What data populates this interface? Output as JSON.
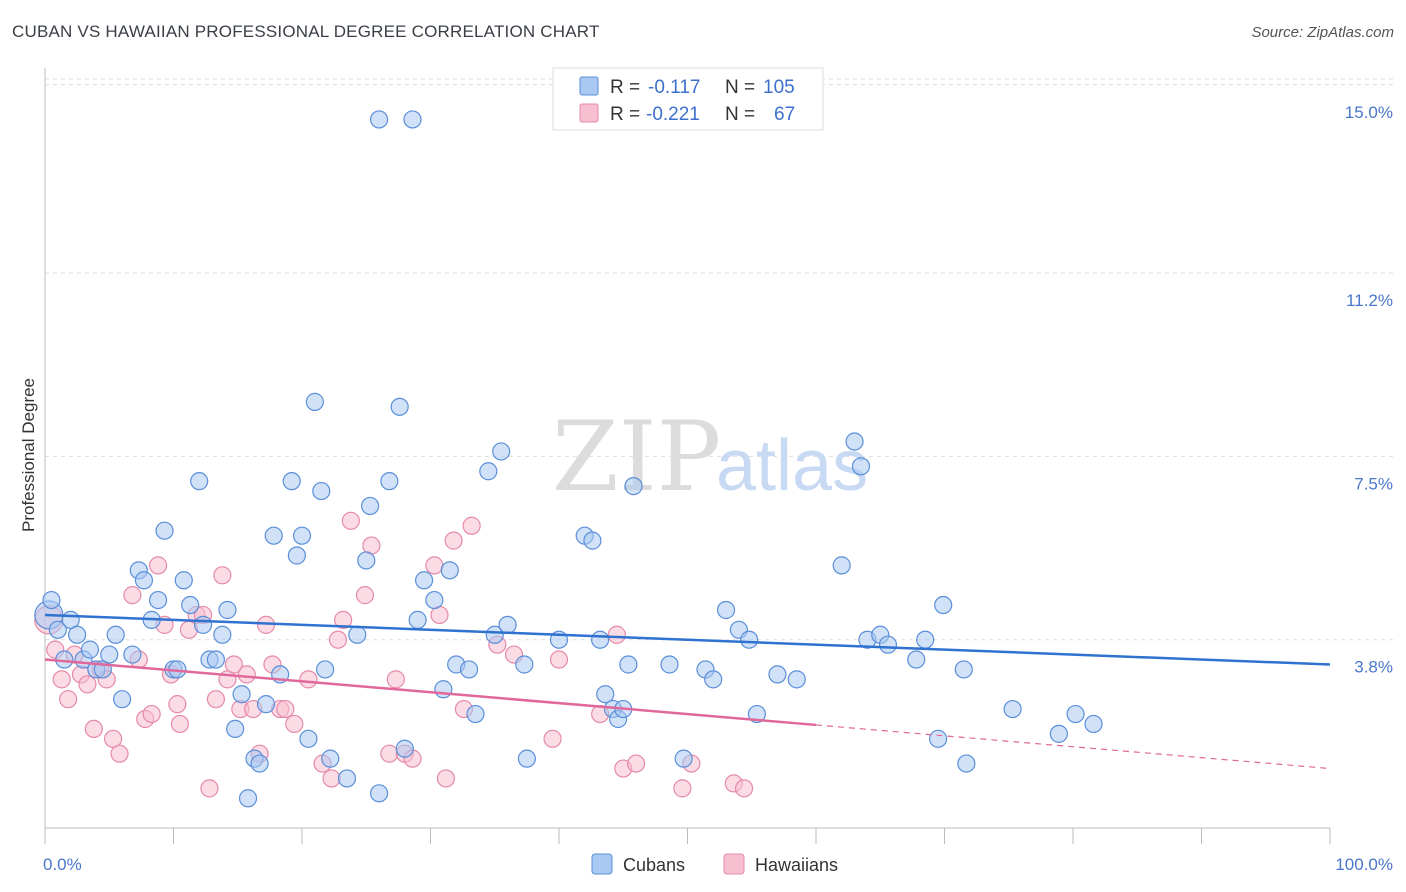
{
  "title": "CUBAN VS HAWAIIAN PROFESSIONAL DEGREE CORRELATION CHART",
  "source": "Source: ZipAtlas.com",
  "watermark": {
    "zip": "ZIP",
    "atlas": "atlas"
  },
  "colors": {
    "cuban_fill": "#a9c9f2",
    "cuban_stroke": "#5b8fd9",
    "cuban_line": "#2f72d0",
    "hawaiian_fill": "#f7bfd0",
    "hawaiian_stroke": "#e58aa9",
    "hawaiian_line": "#e0689a",
    "tick_label": "#4a78c8",
    "grid": "#dddddd"
  },
  "legend": {
    "rows": [
      {
        "r_label": "R =",
        "r_value": "-0.117",
        "n_label": "N =",
        "n_value": "105"
      },
      {
        "r_label": "R =",
        "r_value": "-0.221",
        "n_label": "N =",
        "n_value": "67"
      }
    ]
  },
  "bottom_legend": [
    "Cubans",
    "Hawaiians"
  ],
  "chart_data": {
    "type": "scatter",
    "title": "CUBAN VS HAWAIIAN PROFESSIONAL DEGREE CORRELATION CHART",
    "xlabel": "",
    "ylabel": "Professional Degree",
    "xlim": [
      0,
      100
    ],
    "ylim": [
      0,
      15.5
    ],
    "x_tick_labels": [
      "0.0%",
      "100.0%"
    ],
    "y_ticks": [
      3.8,
      7.5,
      11.2,
      15.0
    ],
    "y_tick_labels": [
      "3.8%",
      "7.5%",
      "11.2%",
      "15.0%"
    ],
    "grid": "horizontal dashed",
    "legend_position": "top-center",
    "series": [
      {
        "name": "Cubans",
        "trend": {
          "x": [
            0,
            100
          ],
          "y": [
            4.3,
            3.3
          ],
          "dashed_from": null
        },
        "points": [
          [
            0.3,
            4.3
          ],
          [
            0.5,
            4.6
          ],
          [
            1.0,
            4.0
          ],
          [
            1.5,
            3.4
          ],
          [
            2.0,
            4.2
          ],
          [
            2.5,
            3.9
          ],
          [
            3.0,
            3.4
          ],
          [
            3.5,
            3.6
          ],
          [
            4.0,
            3.2
          ],
          [
            4.5,
            3.2
          ],
          [
            5.0,
            3.5
          ],
          [
            5.5,
            3.9
          ],
          [
            6.0,
            2.6
          ],
          [
            6.8,
            3.5
          ],
          [
            7.3,
            5.2
          ],
          [
            7.7,
            5.0
          ],
          [
            8.3,
            4.2
          ],
          [
            8.8,
            4.6
          ],
          [
            9.3,
            6.0
          ],
          [
            10.0,
            3.2
          ],
          [
            10.3,
            3.2
          ],
          [
            10.8,
            5.0
          ],
          [
            11.3,
            4.5
          ],
          [
            12.0,
            7.0
          ],
          [
            12.3,
            4.1
          ],
          [
            12.8,
            3.4
          ],
          [
            13.3,
            3.4
          ],
          [
            13.8,
            3.9
          ],
          [
            14.2,
            4.4
          ],
          [
            14.8,
            2.0
          ],
          [
            15.3,
            2.7
          ],
          [
            15.8,
            0.6
          ],
          [
            16.3,
            1.4
          ],
          [
            16.7,
            1.3
          ],
          [
            17.2,
            2.5
          ],
          [
            17.8,
            5.9
          ],
          [
            18.3,
            3.1
          ],
          [
            19.2,
            7.0
          ],
          [
            19.6,
            5.5
          ],
          [
            20.0,
            5.9
          ],
          [
            20.5,
            1.8
          ],
          [
            21.0,
            8.6
          ],
          [
            21.5,
            6.8
          ],
          [
            21.8,
            3.2
          ],
          [
            22.2,
            1.4
          ],
          [
            23.5,
            1.0
          ],
          [
            24.3,
            3.9
          ],
          [
            25.0,
            5.4
          ],
          [
            25.3,
            6.5
          ],
          [
            26.0,
            0.7
          ],
          [
            26.8,
            7.0
          ],
          [
            27.6,
            8.5
          ],
          [
            28.0,
            1.6
          ],
          [
            28.6,
            14.3
          ],
          [
            29.0,
            4.2
          ],
          [
            29.5,
            5.0
          ],
          [
            30.3,
            4.6
          ],
          [
            31.0,
            2.8
          ],
          [
            31.5,
            5.2
          ],
          [
            32.0,
            3.3
          ],
          [
            33.0,
            3.2
          ],
          [
            33.5,
            2.3
          ],
          [
            34.5,
            7.2
          ],
          [
            35.0,
            3.9
          ],
          [
            35.5,
            7.6
          ],
          [
            36.0,
            4.1
          ],
          [
            37.3,
            3.3
          ],
          [
            37.5,
            1.4
          ],
          [
            40.0,
            3.8
          ],
          [
            42.0,
            5.9
          ],
          [
            42.6,
            5.8
          ],
          [
            43.2,
            3.8
          ],
          [
            43.6,
            2.7
          ],
          [
            44.2,
            2.4
          ],
          [
            44.6,
            2.2
          ],
          [
            45.0,
            2.4
          ],
          [
            45.4,
            3.3
          ],
          [
            45.8,
            6.9
          ],
          [
            48.6,
            3.3
          ],
          [
            49.7,
            1.4
          ],
          [
            51.4,
            3.2
          ],
          [
            52.0,
            3.0
          ],
          [
            53.0,
            4.4
          ],
          [
            54.0,
            4.0
          ],
          [
            54.8,
            3.8
          ],
          [
            55.4,
            2.3
          ],
          [
            57.0,
            3.1
          ],
          [
            58.5,
            3.0
          ],
          [
            62.0,
            5.3
          ],
          [
            63.0,
            7.8
          ],
          [
            63.5,
            7.3
          ],
          [
            64.0,
            3.8
          ],
          [
            65.0,
            3.9
          ],
          [
            65.6,
            3.7
          ],
          [
            67.8,
            3.4
          ],
          [
            68.5,
            3.8
          ],
          [
            69.5,
            1.8
          ],
          [
            69.9,
            4.5
          ],
          [
            71.5,
            3.2
          ],
          [
            71.7,
            1.3
          ],
          [
            75.3,
            2.4
          ],
          [
            78.9,
            1.9
          ],
          [
            80.2,
            2.3
          ],
          [
            81.6,
            2.1
          ],
          [
            26.0,
            14.3
          ]
        ]
      },
      {
        "name": "Hawaiians",
        "trend": {
          "x": [
            0,
            100
          ],
          "y": [
            3.4,
            1.2
          ],
          "dashed_from": 60
        },
        "points": [
          [
            0.3,
            4.2
          ],
          [
            0.8,
            3.6
          ],
          [
            1.3,
            3.0
          ],
          [
            1.8,
            2.6
          ],
          [
            2.3,
            3.5
          ],
          [
            2.8,
            3.1
          ],
          [
            3.3,
            2.9
          ],
          [
            3.8,
            2.0
          ],
          [
            4.3,
            3.2
          ],
          [
            4.8,
            3.0
          ],
          [
            5.3,
            1.8
          ],
          [
            5.8,
            1.5
          ],
          [
            6.8,
            4.7
          ],
          [
            7.3,
            3.4
          ],
          [
            7.8,
            2.2
          ],
          [
            8.3,
            2.3
          ],
          [
            8.8,
            5.3
          ],
          [
            9.3,
            4.1
          ],
          [
            9.8,
            3.1
          ],
          [
            10.3,
            2.5
          ],
          [
            10.5,
            2.1
          ],
          [
            11.2,
            4.0
          ],
          [
            11.8,
            4.3
          ],
          [
            12.3,
            4.3
          ],
          [
            12.8,
            0.8
          ],
          [
            13.3,
            2.6
          ],
          [
            13.8,
            5.1
          ],
          [
            14.2,
            3.0
          ],
          [
            14.7,
            3.3
          ],
          [
            15.2,
            2.4
          ],
          [
            15.7,
            3.1
          ],
          [
            16.2,
            2.4
          ],
          [
            16.7,
            1.5
          ],
          [
            17.2,
            4.1
          ],
          [
            17.7,
            3.3
          ],
          [
            18.3,
            2.4
          ],
          [
            18.7,
            2.4
          ],
          [
            19.4,
            2.1
          ],
          [
            20.5,
            3.0
          ],
          [
            21.6,
            1.3
          ],
          [
            22.3,
            1.0
          ],
          [
            22.8,
            3.8
          ],
          [
            23.2,
            4.2
          ],
          [
            23.8,
            6.2
          ],
          [
            24.9,
            4.7
          ],
          [
            25.4,
            5.7
          ],
          [
            26.8,
            1.5
          ],
          [
            27.3,
            3.0
          ],
          [
            28.0,
            1.5
          ],
          [
            28.6,
            1.4
          ],
          [
            30.3,
            5.3
          ],
          [
            30.7,
            4.3
          ],
          [
            31.2,
            1.0
          ],
          [
            31.8,
            5.8
          ],
          [
            32.6,
            2.4
          ],
          [
            33.2,
            6.1
          ],
          [
            35.2,
            3.7
          ],
          [
            36.5,
            3.5
          ],
          [
            39.5,
            1.8
          ],
          [
            40.0,
            3.4
          ],
          [
            43.2,
            2.3
          ],
          [
            44.5,
            3.9
          ],
          [
            45.0,
            1.2
          ],
          [
            46.0,
            1.3
          ],
          [
            49.6,
            0.8
          ],
          [
            50.3,
            1.3
          ],
          [
            53.6,
            0.9
          ],
          [
            54.4,
            0.8
          ]
        ]
      }
    ]
  }
}
